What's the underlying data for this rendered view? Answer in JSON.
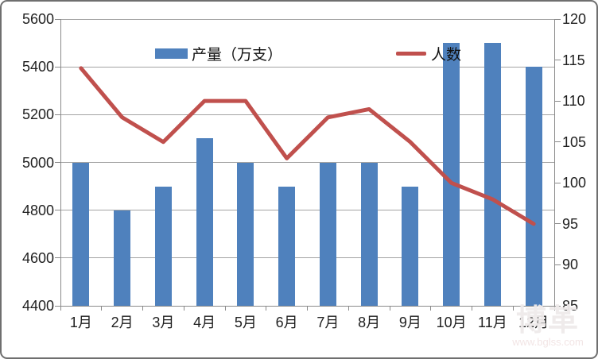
{
  "chart_data": {
    "type": "bar",
    "subtype": "bar-line-combo",
    "title": "",
    "categories": [
      "1月",
      "2月",
      "3月",
      "4月",
      "5月",
      "6月",
      "7月",
      "8月",
      "9月",
      "10月",
      "11月",
      "12月"
    ],
    "series": [
      {
        "name": "产量（万支）",
        "type": "bar",
        "axis": "left",
        "color": "#4F81BD",
        "values": [
          5000,
          4800,
          4900,
          5100,
          5000,
          4900,
          5000,
          5000,
          4900,
          5500,
          5500,
          5400
        ]
      },
      {
        "name": "人数",
        "type": "line",
        "axis": "right",
        "color": "#C0504D",
        "values": [
          114,
          108,
          105,
          110,
          110,
          103,
          108,
          109,
          105,
          100,
          98,
          95
        ]
      }
    ],
    "left_axis": {
      "min": 4400,
      "max": 5600,
      "step": 200,
      "tick_labels": [
        "5600",
        "5400",
        "5200",
        "5000",
        "4800",
        "4600",
        "4400"
      ]
    },
    "right_axis": {
      "min": 85,
      "max": 120,
      "step": 5,
      "tick_labels": [
        "120",
        "115",
        "110",
        "105",
        "100",
        "95",
        "90",
        "85"
      ]
    },
    "grid": true,
    "legend_position": "top-inside"
  },
  "legend": {
    "bar_label": "产量（万支）",
    "line_label": "人数"
  },
  "watermark": {
    "logo": "博革",
    "url": "www.bglss.com"
  },
  "colors": {
    "bar": "#4F81BD",
    "line": "#C0504D",
    "gridline": "#A3A3A3",
    "axis": "#8A8A8A",
    "label": "#1F1F1F",
    "frame_border": "#6F6F6F"
  }
}
